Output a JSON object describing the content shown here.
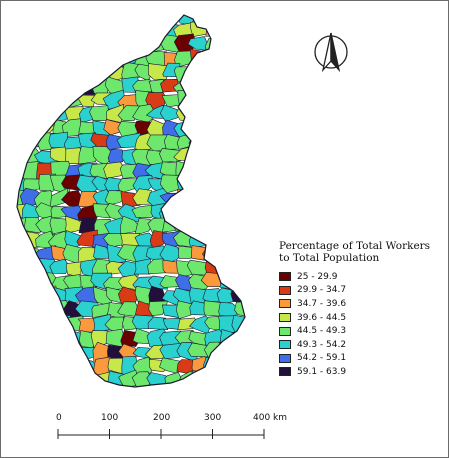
{
  "legend": {
    "title_line1": "Percentage of Total Workers",
    "title_line2": "to Total Population",
    "classes": [
      {
        "label": "25 - 29.9",
        "color": "#6b0000"
      },
      {
        "label": "29.9 - 34.7",
        "color": "#d83b15"
      },
      {
        "label": "34.7 - 39.6",
        "color": "#fb9a3c"
      },
      {
        "label": "39.6 - 44.5",
        "color": "#c8e84a"
      },
      {
        "label": "44.5 - 49.3",
        "color": "#6de86c"
      },
      {
        "label": "49.3 - 54.2",
        "color": "#2bd1cf"
      },
      {
        "label": "54.2 - 59.1",
        "color": "#3f6ee8"
      },
      {
        "label": "59.1 - 63.9",
        "color": "#22103a"
      }
    ]
  },
  "scale_bar": {
    "ticks": [
      "0",
      "100",
      "200",
      "300",
      "400 km"
    ]
  },
  "north_arrow": {
    "icon": "north-arrow-icon"
  },
  "map": {
    "boundary_color": "#1a1a2e",
    "fill_colors": [
      "#6de86c",
      "#2bd1cf",
      "#c8e84a",
      "#fb9a3c",
      "#3f6ee8",
      "#d83b15",
      "#6b0000",
      "#22103a"
    ]
  }
}
